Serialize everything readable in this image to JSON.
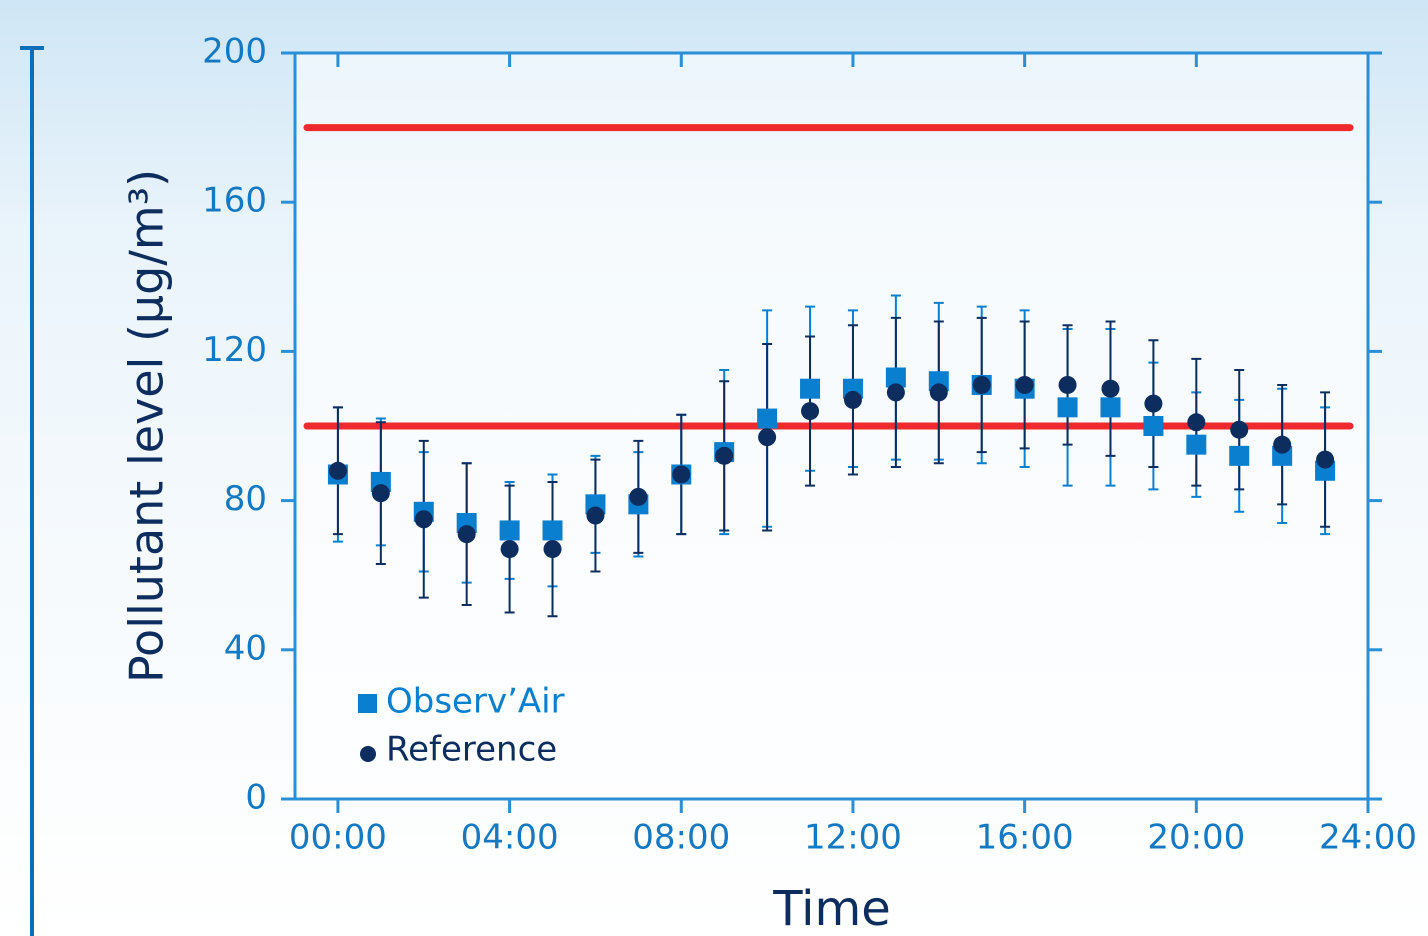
{
  "chart_data": {
    "type": "errorbar",
    "ylabel": "Pollutant level (µg/m³)",
    "xlabel": "Time",
    "xlim": [
      -1,
      24
    ],
    "xticks": [
      {
        "value": 0,
        "label": "00:00"
      },
      {
        "value": 4,
        "label": "04:00"
      },
      {
        "value": 8,
        "label": "08:00"
      },
      {
        "value": 12,
        "label": "12:00"
      },
      {
        "value": 16,
        "label": "16:00"
      },
      {
        "value": 20,
        "label": "20:00"
      },
      {
        "value": 24,
        "label": "24:00"
      }
    ],
    "ylim": [
      0,
      200
    ],
    "yticks": [
      0,
      40,
      80,
      120,
      160,
      200
    ],
    "legend": "lower left",
    "hlines": {
      "values": [
        180,
        100
      ],
      "color": "#ee2a2e"
    },
    "x": [
      0,
      1,
      2,
      3,
      4,
      5,
      6,
      7,
      8,
      9,
      10,
      11,
      12,
      13,
      14,
      15,
      16,
      17,
      18,
      19,
      20,
      21,
      22,
      23
    ],
    "series": [
      {
        "name": "Observ’Air",
        "color": "#0a7fcf",
        "marker": "square",
        "values": [
          87,
          85,
          77,
          74,
          72,
          72,
          79,
          79,
          87,
          93,
          102,
          110,
          110,
          113,
          112,
          111,
          110,
          105,
          105,
          100,
          95,
          92,
          92,
          88
        ],
        "errors": [
          18,
          17,
          16,
          16,
          13,
          15,
          13,
          14,
          16,
          22,
          29,
          22,
          21,
          22,
          21,
          21,
          21,
          21,
          21,
          17,
          14,
          15,
          18,
          17
        ]
      },
      {
        "name": "Reference",
        "color": "#0c2d5e",
        "marker": "circle",
        "values": [
          88,
          82,
          75,
          71,
          67,
          67,
          76,
          81,
          87,
          92,
          97,
          104,
          107,
          109,
          109,
          111,
          111,
          111,
          110,
          106,
          101,
          99,
          95,
          91
        ],
        "errors": [
          17,
          19,
          21,
          19,
          17,
          18,
          15,
          15,
          16,
          20,
          25,
          20,
          20,
          20,
          19,
          18,
          17,
          16,
          18,
          17,
          17,
          16,
          16,
          18
        ]
      }
    ]
  }
}
